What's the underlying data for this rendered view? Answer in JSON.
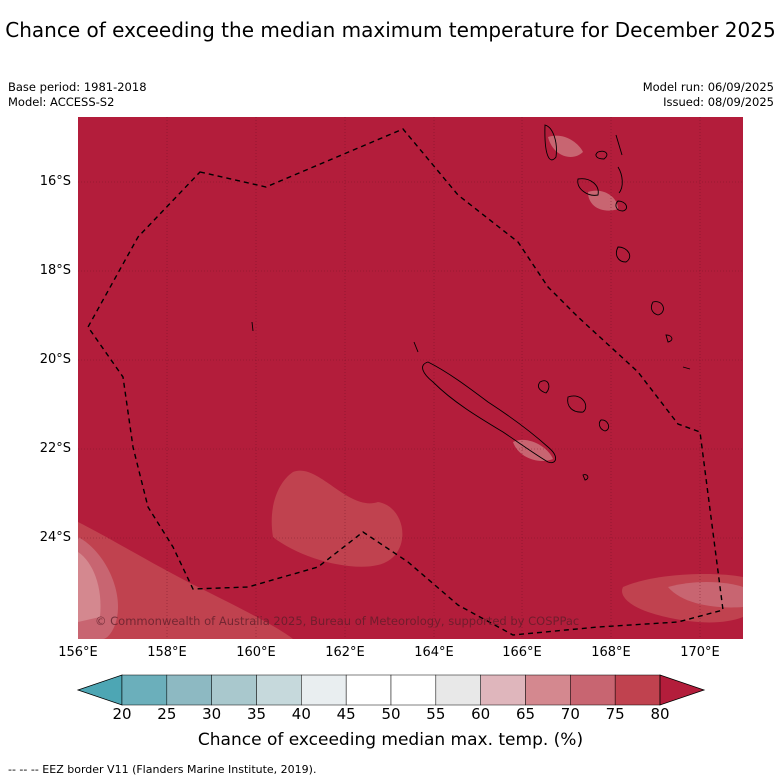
{
  "title": "Chance of exceeding the median maximum temperature for December 2025",
  "meta_left": {
    "base_period": "Base period: 1981-2018",
    "model": "Model: ACCESS-S2"
  },
  "meta_right": {
    "model_run": "Model run: 06/09/2025",
    "issued": "Issued: 08/09/2025"
  },
  "map": {
    "copyright": "© Commonwealth of Australia 2025, Bureau of Meteorology, supported by COSPPac",
    "lat_labels": [
      "16°S",
      "18°S",
      "20°S",
      "22°S",
      "24°S"
    ],
    "lon_labels": [
      "156°E",
      "158°E",
      "160°E",
      "162°E",
      "164°E",
      "166°E",
      "168°E",
      "170°E"
    ],
    "background_color": "#b31d3b"
  },
  "colorbar": {
    "ticks": [
      "20",
      "25",
      "30",
      "35",
      "40",
      "45",
      "50",
      "55",
      "60",
      "65",
      "70",
      "75",
      "80"
    ],
    "colors": [
      "#4da6b4",
      "#6bafbb",
      "#8db9c2",
      "#a9c8cd",
      "#c6d9dc",
      "#e9eef0",
      "#ffffff",
      "#ffffff",
      "#e8e8e8",
      "#dfb6bc",
      "#d4888f",
      "#c86571",
      "#c0424f",
      "#b31d3b"
    ],
    "label": "Chance of exceeding median max. temp. (%)"
  },
  "footer": "--  --  -- EEZ border V11 (Flanders Marine Institute, 2019)."
}
